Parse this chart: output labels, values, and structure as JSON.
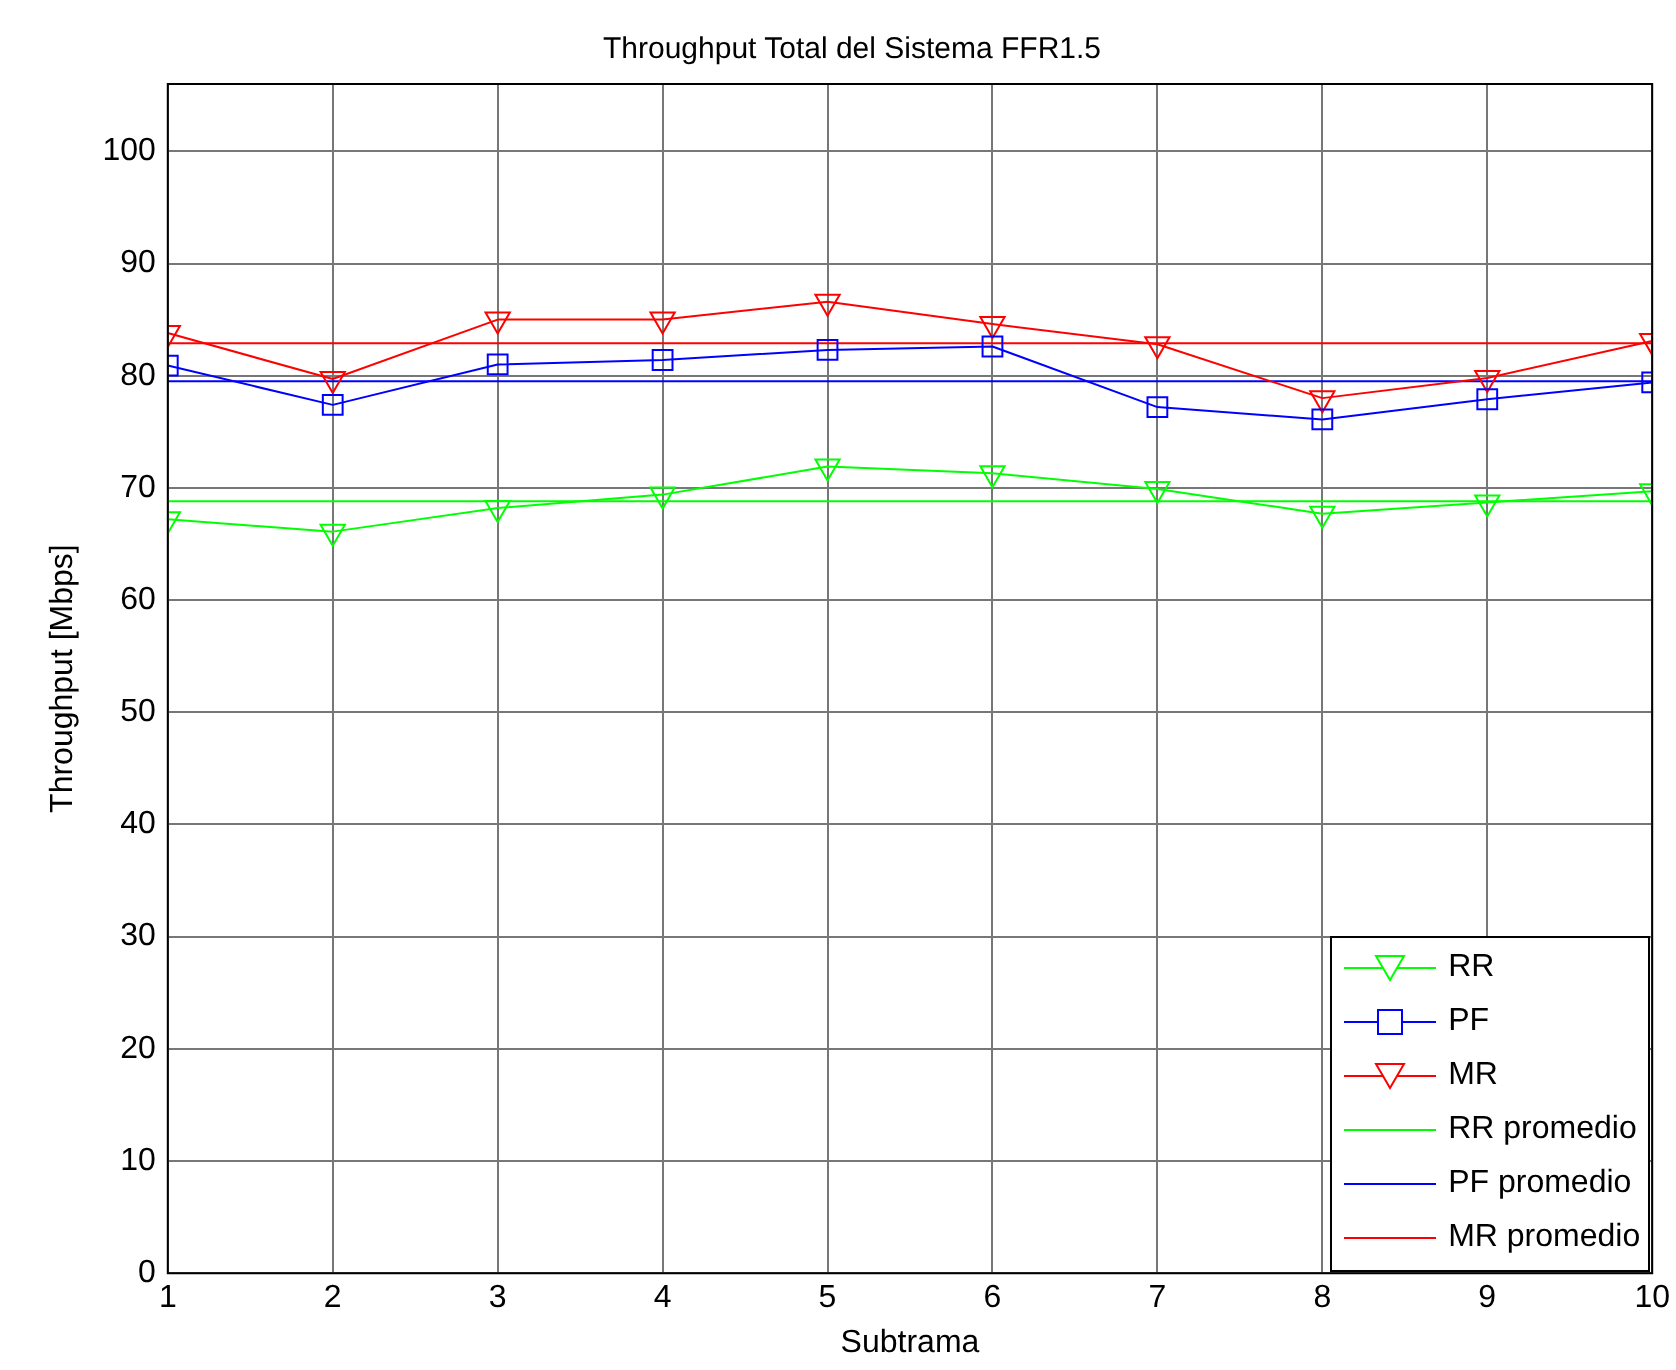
{
  "chart_data": {
    "type": "line",
    "title": "Throughput Total del Sistema FFR1.5",
    "xlabel": "Subtrama",
    "ylabel": "Throughput [Mbps]",
    "x": [
      1,
      2,
      3,
      4,
      5,
      6,
      7,
      8,
      9,
      10
    ],
    "series": [
      {
        "name": "RR",
        "color": "#00ff00",
        "marker": "triangle",
        "values": [
          67.2,
          66.1,
          68.2,
          69.4,
          71.9,
          71.3,
          69.9,
          67.7,
          68.7,
          69.7
        ]
      },
      {
        "name": "PF",
        "color": "#0000ff",
        "marker": "square",
        "values": [
          80.9,
          77.4,
          81.0,
          81.4,
          82.3,
          82.6,
          77.2,
          76.1,
          77.9,
          79.4
        ]
      },
      {
        "name": "MR",
        "color": "#ff0000",
        "marker": "triangle",
        "values": [
          83.8,
          79.7,
          85.0,
          85.0,
          86.6,
          84.6,
          82.8,
          78.0,
          79.8,
          83.1
        ]
      },
      {
        "name": "RR promedio",
        "color": "#00ff00",
        "marker": "none",
        "values": [
          68.8,
          68.8,
          68.8,
          68.8,
          68.8,
          68.8,
          68.8,
          68.8,
          68.8,
          68.8
        ]
      },
      {
        "name": "PF promedio",
        "color": "#0000ff",
        "marker": "none",
        "values": [
          79.5,
          79.5,
          79.5,
          79.5,
          79.5,
          79.5,
          79.5,
          79.5,
          79.5,
          79.5
        ]
      },
      {
        "name": "MR promedio",
        "color": "#ff0000",
        "marker": "none",
        "values": [
          82.9,
          82.9,
          82.9,
          82.9,
          82.9,
          82.9,
          82.9,
          82.9,
          82.9,
          82.9
        ]
      }
    ],
    "xlim": [
      1,
      10
    ],
    "xticks": [
      1,
      2,
      3,
      4,
      5,
      6,
      7,
      8,
      9,
      10
    ],
    "ylim": [
      0,
      106
    ],
    "yticks": [
      0,
      10,
      20,
      30,
      40,
      50,
      60,
      70,
      80,
      90,
      100
    ],
    "grid": true,
    "legend": "bottom right",
    "line_style": "solid"
  }
}
